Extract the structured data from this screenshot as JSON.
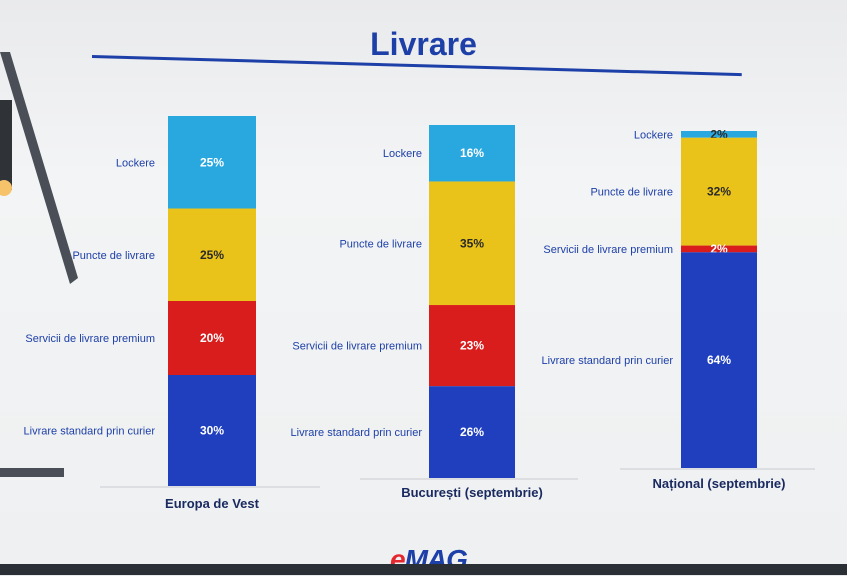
{
  "slide": {
    "title": "Livrare",
    "logo_e": "e",
    "logo_rest": "MAG"
  },
  "colors": {
    "Lockere": "#29a8e0",
    "Puncte de livrare": "#e9c31a",
    "Servicii de livrare premium": "#d91d1d",
    "Livrare standard prin curier": "#1f3fbf",
    "title": "#1d3fa8"
  },
  "chart_data": {
    "type": "bar",
    "stacked": true,
    "categories": [
      "Europa de Vest",
      "București (septembrie)",
      "Național (septembrie)"
    ],
    "series": [
      {
        "name": "Lockere",
        "values": [
          25,
          16,
          2
        ],
        "labels": [
          "25%",
          "16%",
          "2%"
        ]
      },
      {
        "name": "Puncte de livrare",
        "values": [
          25,
          35,
          32
        ],
        "labels": [
          "25%",
          "35%",
          "32%"
        ]
      },
      {
        "name": "Servicii de livrare premium",
        "values": [
          20,
          23,
          2
        ],
        "labels": [
          "20%",
          "23%",
          "2%"
        ]
      },
      {
        "name": "Livrare standard prin curier",
        "values": [
          30,
          26,
          64
        ],
        "labels": [
          "30%",
          "26%",
          "64%"
        ]
      }
    ],
    "segment_labels": [
      [
        "Lockere",
        "Puncte de livrare",
        "Servicii de livrare premium",
        "Livrare standard prin curier"
      ],
      [
        "Lockere",
        "Puncte de livrare",
        "Servicii de livrare premium",
        "Livrare standard prin curier"
      ],
      [
        "Lockere",
        "Puncte de livrare",
        "Servicii de livrare premium",
        "Livrare standard prin curier"
      ]
    ],
    "title": "Livrare",
    "xlabel": "",
    "ylabel": "",
    "ylim": [
      0,
      100
    ],
    "grid": false,
    "legend": "none"
  }
}
